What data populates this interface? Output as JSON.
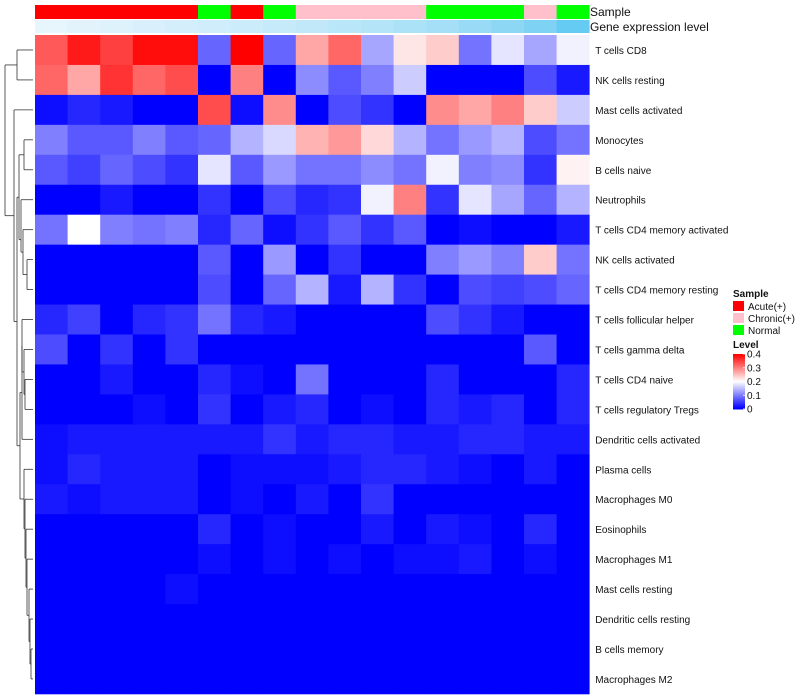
{
  "chart_data": {
    "type": "heatmap",
    "title": "",
    "annotation_rows": [
      "Sample",
      "Gene expression level"
    ],
    "sample_groups": [
      "Acute",
      "Acute",
      "Acute",
      "Acute",
      "Acute",
      "Normal",
      "Acute",
      "Normal",
      "Chronic",
      "Chronic",
      "Chronic",
      "Chronic",
      "Normal",
      "Normal",
      "Normal",
      "Chronic",
      "Normal"
    ],
    "gene_expression_level": [
      0.02,
      0.05,
      0.08,
      0.11,
      0.14,
      0.17,
      0.2,
      0.23,
      0.27,
      0.31,
      0.35,
      0.4,
      0.45,
      0.52,
      0.6,
      0.7,
      0.85
    ],
    "rows": [
      "T cells CD8",
      "NK cells resting",
      "Mast cells activated",
      "Monocytes",
      "B cells naive",
      "Neutrophils",
      "T cells CD4 memory activated",
      "NK cells activated",
      "T cells CD4 memory resting",
      "T cells follicular helper",
      "T cells gamma delta",
      "T cells CD4 naive",
      "T cells regulatory  Tregs",
      "Dendritic cells activated",
      "Plasma cells",
      "Macrophages M0",
      "Eosinophils",
      "Macrophages M1",
      "Mast cells resting",
      "Dendritic cells resting",
      "B cells memory",
      "Macrophages M2"
    ],
    "values": [
      [
        0.33,
        0.38,
        0.35,
        0.39,
        0.39,
        0.08,
        0.4,
        0.08,
        0.27,
        0.32,
        0.13,
        0.22,
        0.24,
        0.09,
        0.18,
        0.13,
        0.19
      ],
      [
        0.32,
        0.27,
        0.36,
        0.32,
        0.34,
        0.0,
        0.3,
        0.0,
        0.11,
        0.07,
        0.1,
        0.16,
        0.0,
        0.0,
        0.0,
        0.06,
        0.02
      ],
      [
        0.01,
        0.03,
        0.02,
        0.0,
        0.0,
        0.34,
        0.01,
        0.29,
        0.0,
        0.06,
        0.04,
        0.0,
        0.29,
        0.27,
        0.3,
        0.24,
        0.16
      ],
      [
        0.1,
        0.07,
        0.07,
        0.1,
        0.07,
        0.08,
        0.14,
        0.17,
        0.26,
        0.28,
        0.23,
        0.14,
        0.09,
        0.12,
        0.14,
        0.06,
        0.09
      ],
      [
        0.07,
        0.05,
        0.08,
        0.06,
        0.04,
        0.18,
        0.07,
        0.12,
        0.09,
        0.09,
        0.11,
        0.09,
        0.19,
        0.1,
        0.11,
        0.04,
        0.21
      ],
      [
        0.0,
        0.0,
        0.02,
        0.0,
        0.0,
        0.04,
        0.0,
        0.06,
        0.03,
        0.04,
        0.19,
        0.3,
        0.04,
        0.18,
        0.13,
        0.08,
        0.14
      ],
      [
        0.09,
        0.2,
        0.1,
        0.09,
        0.1,
        0.03,
        0.08,
        0.01,
        0.04,
        0.07,
        0.04,
        0.07,
        0.0,
        0.01,
        0.0,
        0.0,
        0.02
      ],
      [
        0.0,
        0.0,
        0.0,
        0.0,
        0.0,
        0.07,
        0.0,
        0.12,
        0.0,
        0.04,
        0.0,
        0.0,
        0.1,
        0.12,
        0.1,
        0.24,
        0.09
      ],
      [
        0.0,
        0.0,
        0.0,
        0.0,
        0.0,
        0.06,
        0.0,
        0.08,
        0.14,
        0.02,
        0.14,
        0.04,
        0.0,
        0.06,
        0.05,
        0.06,
        0.08
      ],
      [
        0.03,
        0.05,
        0.0,
        0.03,
        0.04,
        0.09,
        0.03,
        0.02,
        0.0,
        0.0,
        0.0,
        0.0,
        0.06,
        0.04,
        0.02,
        0.0,
        0.0
      ],
      [
        0.06,
        0.0,
        0.04,
        0.0,
        0.04,
        0.0,
        0.0,
        0.0,
        0.0,
        0.0,
        0.0,
        0.0,
        0.0,
        0.0,
        0.0,
        0.07,
        0.0
      ],
      [
        0.0,
        0.0,
        0.02,
        0.0,
        0.0,
        0.03,
        0.01,
        0.0,
        0.09,
        0.0,
        0.0,
        0.0,
        0.03,
        0.0,
        0.0,
        0.0,
        0.03
      ],
      [
        0.0,
        0.0,
        0.0,
        0.01,
        0.0,
        0.04,
        0.0,
        0.02,
        0.03,
        0.0,
        0.01,
        0.0,
        0.03,
        0.02,
        0.03,
        0.0,
        0.03
      ],
      [
        0.01,
        0.02,
        0.02,
        0.02,
        0.02,
        0.02,
        0.02,
        0.04,
        0.02,
        0.03,
        0.03,
        0.02,
        0.02,
        0.03,
        0.03,
        0.02,
        0.02
      ],
      [
        0.01,
        0.03,
        0.02,
        0.02,
        0.02,
        0.0,
        0.01,
        0.01,
        0.01,
        0.02,
        0.03,
        0.03,
        0.02,
        0.01,
        0.0,
        0.02,
        0.0
      ],
      [
        0.02,
        0.01,
        0.02,
        0.02,
        0.02,
        0.0,
        0.01,
        0.0,
        0.02,
        0.0,
        0.04,
        0.0,
        0.0,
        0.0,
        0.0,
        0.0,
        0.0
      ],
      [
        0.0,
        0.0,
        0.0,
        0.0,
        0.0,
        0.03,
        0.0,
        0.01,
        0.0,
        0.0,
        0.02,
        0.0,
        0.02,
        0.01,
        0.0,
        0.03,
        0.0
      ],
      [
        0.0,
        0.0,
        0.0,
        0.0,
        0.0,
        0.01,
        0.0,
        0.01,
        0.0,
        0.01,
        0.0,
        0.01,
        0.01,
        0.02,
        0.0,
        0.01,
        0.0
      ],
      [
        0.0,
        0.0,
        0.0,
        0.0,
        0.01,
        0.0,
        0.0,
        0.0,
        0.0,
        0.0,
        0.0,
        0.0,
        0.0,
        0.0,
        0.0,
        0.0,
        0.0
      ],
      [
        0.0,
        0.0,
        0.0,
        0.0,
        0.0,
        0.0,
        0.0,
        0.0,
        0.0,
        0.0,
        0.0,
        0.0,
        0.0,
        0.0,
        0.0,
        0.0,
        0.0
      ],
      [
        0.0,
        0.0,
        0.0,
        0.0,
        0.0,
        0.0,
        0.0,
        0.0,
        0.0,
        0.0,
        0.0,
        0.0,
        0.0,
        0.0,
        0.0,
        0.0,
        0.0
      ],
      [
        0.0,
        0.0,
        0.0,
        0.0,
        0.0,
        0.0,
        0.0,
        0.0,
        0.0,
        0.0,
        0.0,
        0.0,
        0.0,
        0.0,
        0.0,
        0.0,
        0.0
      ]
    ],
    "color_scale": {
      "min": 0,
      "mid": 0.2,
      "max": 0.4,
      "low_color": "#0000ff",
      "mid_color": "#ffffff",
      "high_color": "#ff0000"
    },
    "legend": {
      "sample_title": "Sample",
      "sample_items": [
        {
          "label": "Acute(+)",
          "key": "Acute",
          "color": "#ff0000"
        },
        {
          "label": "Chronic(+)",
          "key": "Chronic",
          "color": "#ffc0cb"
        },
        {
          "label": "Normal",
          "key": "Normal",
          "color": "#00ff00"
        }
      ],
      "level_title": "Level",
      "level_ticks": [
        0,
        0.1,
        0.2,
        0.3,
        0.4
      ],
      "level_tick_labels": [
        "0",
        "0.1",
        "0.2",
        "0.3",
        "0.4"
      ],
      "expression_colors": {
        "low": "#eaf6fd",
        "high": "#4fc3f0"
      }
    }
  }
}
